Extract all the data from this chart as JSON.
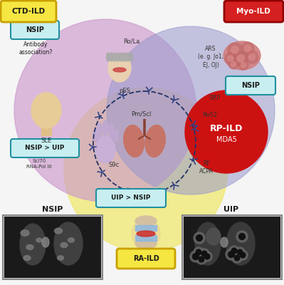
{
  "bg_color": "#f5f5f5",
  "ctd_label": "CTD-ILD",
  "ctd_label_bg": "#f5e642",
  "ctd_label_border": "#c8a000",
  "myo_label": "Myo-ILD",
  "myo_label_bg": "#d42020",
  "myo_label_border": "#900000",
  "myo_label_text_color": "#ffffff",
  "ra_label": "RA-ILD",
  "ra_label_bg": "#f5e642",
  "ra_label_border": "#c8a000",
  "circle_ctd_color": "#cc99cc",
  "circle_ctd_alpha": 0.65,
  "circle_myo_color": "#9999cc",
  "circle_myo_alpha": 0.55,
  "circle_ra_color": "#f0e870",
  "circle_ra_alpha": 0.75,
  "nsip_box_bg": "#c8eef0",
  "nsip_box_border": "#2090a0",
  "rp_ild_color": "#cc1111",
  "rp_ild_text": "RP-ILD",
  "rp_ild_sub": "MDA5",
  "labels": {
    "nsip_top": "NSIP",
    "antibody": "Antibody\nassociation?",
    "ro_la": "Ro/La",
    "pSS": "pSS",
    "SLE": "SLE",
    "nsip_uip": "NSIP > UIP",
    "scl70": "Scl70\nRNA-Pol III",
    "S9c": "S9c",
    "pm_scl": "Pm/Scl",
    "ars": "ARS\n(e. g. Jo1,\nEJ, OJ)",
    "srp": "SRP",
    "ro52": "Ro52",
    "rf_acpa": "RF\nACPA",
    "uip_nsip": "UIP > NSIP",
    "nsip_bottom": "NSIP",
    "uip_bottom": "UIP",
    "nsip_myo": "NSIP"
  }
}
